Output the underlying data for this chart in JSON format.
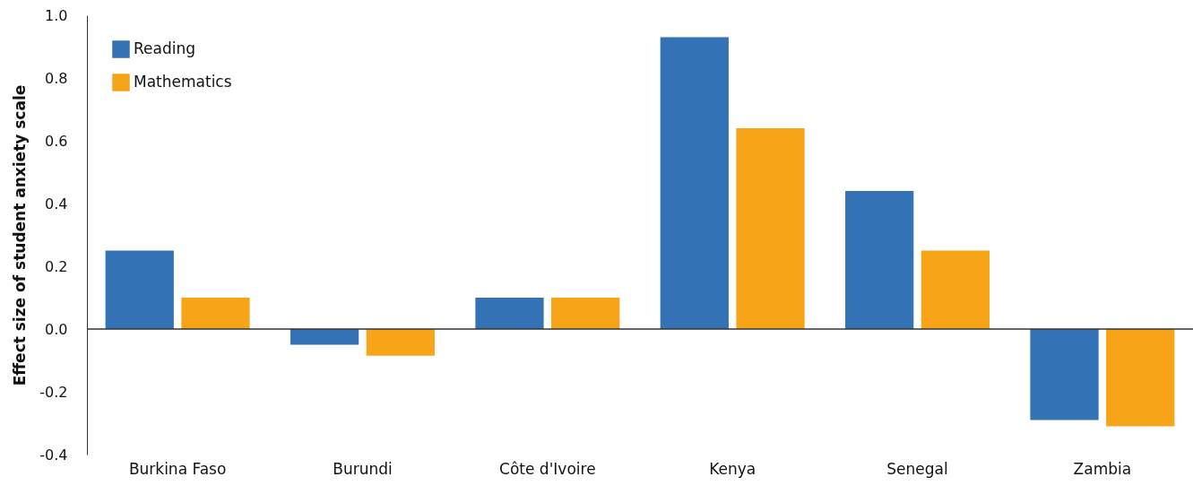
{
  "chart_data": {
    "type": "bar",
    "ylabel": "Effect size of student anxiety scale",
    "categories": [
      "Burkina Faso",
      "Burundi",
      "Côte d'Ivoire",
      "Kenya",
      "Senegal",
      "Zambia"
    ],
    "series": [
      {
        "name": "Reading",
        "color": "#3372b4",
        "values": [
          0.25,
          -0.05,
          0.1,
          0.93,
          0.44,
          -0.29
        ]
      },
      {
        "name": "Mathematics",
        "color": "#f7a418",
        "values": [
          0.1,
          -0.085,
          0.1,
          0.64,
          0.25,
          -0.31
        ]
      }
    ],
    "ylim": [
      -0.4,
      1.0
    ],
    "yticks": [
      {
        "value": -0.4,
        "label": "-0.4"
      },
      {
        "value": -0.2,
        "label": "-0.2"
      },
      {
        "value": 0,
        "label": "0.0"
      },
      {
        "value": 0.2,
        "label": "0.2"
      },
      {
        "value": 0.4,
        "label": "0.4"
      },
      {
        "value": 0.6,
        "label": "0.6"
      },
      {
        "value": 0.8,
        "label": "0.8"
      },
      {
        "value": 1.0,
        "label": "1.0"
      }
    ],
    "ref_lines": [
      {
        "axis": "y",
        "value": 0,
        "color": "#333333"
      }
    ],
    "grid": false,
    "legend": "top left"
  }
}
